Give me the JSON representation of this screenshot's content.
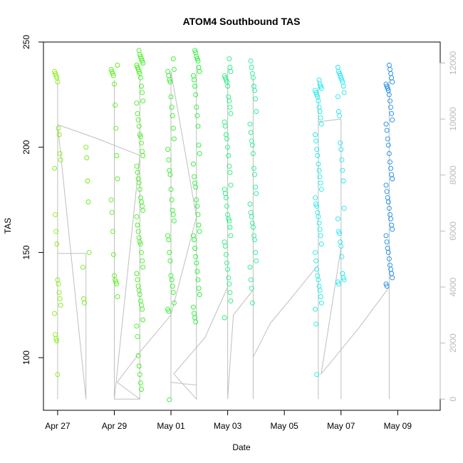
{
  "chart_data": {
    "type": "scatter",
    "title": "ATOM4 Southbound TAS",
    "xlabel": "Date",
    "ylabel": "TAS",
    "x_ticks": [
      "Apr 27",
      "Apr 29",
      "May 01",
      "May 03",
      "May 05",
      "May 07",
      "May 09"
    ],
    "x_tick_days": [
      0,
      2,
      4,
      6,
      8,
      10,
      12
    ],
    "xlim_days": [
      -0.5,
      13.5
    ],
    "ylim": [
      75,
      250
    ],
    "y_ticks": [
      100,
      150,
      200,
      250
    ],
    "y2lim": [
      -400,
      12750
    ],
    "y2_ticks": [
      0,
      2000,
      4000,
      6000,
      8000,
      10000,
      12000
    ],
    "grid": false,
    "legend": "none",
    "point_color_scale": "green-to-blue by date",
    "altitude_line_color": "#bfbfbf",
    "flights": [
      {
        "day": 0.0,
        "color": "#7ff00a",
        "tas": [
          236,
          235,
          234,
          233,
          231,
          209,
          206,
          197,
          194,
          190,
          168,
          160,
          154,
          137,
          135,
          131,
          128,
          125,
          121,
          111,
          109,
          108,
          92
        ]
      },
      {
        "day": 1.0,
        "color": "#6cf012",
        "tas": [
          200,
          195,
          184,
          174,
          150,
          143,
          128,
          126
        ]
      },
      {
        "day": 2.0,
        "color": "#55f018",
        "tas": [
          239,
          237,
          236,
          235,
          234,
          230,
          220,
          209,
          196,
          185,
          175,
          169,
          160,
          149,
          139,
          137,
          136,
          135,
          129
        ]
      },
      {
        "day": 2.9,
        "color": "#43f01e",
        "tas": [
          246,
          244,
          243,
          242,
          241,
          240,
          239,
          238,
          237,
          236,
          235,
          233,
          229,
          226,
          222,
          221,
          216,
          213,
          210,
          206,
          205,
          202,
          198,
          196,
          191,
          188,
          185,
          183,
          180,
          176,
          174,
          172,
          170,
          167,
          163,
          160,
          157,
          155,
          154,
          150,
          146,
          143,
          140,
          137,
          134,
          132,
          130,
          127,
          125,
          123,
          118,
          115,
          110,
          101,
          96,
          92,
          88,
          85
        ]
      },
      {
        "day": 4.0,
        "color": "#2cf026",
        "tas": [
          242,
          237,
          236,
          234,
          232,
          231,
          224,
          219,
          215,
          209,
          204,
          199,
          194,
          189,
          187,
          180,
          175,
          170,
          168,
          165,
          158,
          156,
          150,
          146,
          139,
          137,
          134,
          131,
          126,
          123,
          122,
          80
        ]
      },
      {
        "day": 4.9,
        "color": "#20f030",
        "tas": [
          246,
          245,
          243,
          242,
          241,
          238,
          236,
          234,
          232,
          229,
          225,
          219,
          215,
          210,
          201,
          197,
          192,
          186,
          183,
          181,
          175,
          172,
          168,
          163,
          160,
          158,
          156,
          152,
          148,
          145,
          141,
          137,
          133,
          130,
          124,
          121,
          119,
          117
        ]
      },
      {
        "day": 6.0,
        "color": "#20f078",
        "tas": [
          242,
          238,
          236,
          234,
          233,
          232,
          231,
          229,
          224,
          222,
          219,
          216,
          212,
          210,
          206,
          204,
          200,
          196,
          191,
          188,
          182,
          180,
          178,
          176,
          172,
          168,
          166,
          165,
          162,
          158,
          155,
          153,
          149,
          145,
          142,
          138,
          135,
          131,
          127,
          119
        ]
      },
      {
        "day": 6.9,
        "color": "#20f090",
        "tas": [
          241,
          238,
          235,
          233,
          229,
          227,
          223,
          217,
          211,
          207,
          203,
          201,
          197,
          190,
          187,
          181,
          178,
          173,
          169,
          167,
          164,
          162,
          158,
          156,
          150,
          146,
          143,
          137,
          133,
          126
        ]
      },
      {
        "day": 9.2,
        "color": "#18ecec",
        "tas": [
          232,
          230,
          229,
          228,
          227,
          226,
          225,
          224,
          222,
          219,
          217,
          214,
          211,
          206,
          203,
          199,
          196,
          192,
          189,
          186,
          183,
          180,
          176,
          173,
          172,
          169,
          167,
          164,
          161,
          158,
          154,
          150,
          146,
          142,
          139,
          137,
          134,
          132,
          129,
          126,
          123,
          116,
          92
        ]
      },
      {
        "day": 10.0,
        "color": "#20e6f0",
        "tas": [
          238,
          236,
          235,
          234,
          233,
          232,
          231,
          229,
          226,
          224,
          217,
          215,
          202,
          199,
          194,
          189,
          184,
          171,
          166,
          160,
          159,
          155,
          153,
          148,
          140,
          138,
          137,
          136,
          135
        ]
      },
      {
        "day": 11.7,
        "color": "#1a8ce8",
        "tas": [
          239,
          237,
          235,
          233,
          231,
          230,
          229,
          228,
          227,
          225,
          222,
          219,
          216,
          213,
          211,
          208,
          204,
          201,
          197,
          193,
          190,
          187,
          185,
          182,
          179,
          176,
          174,
          171,
          168,
          166,
          163,
          161,
          158,
          155,
          152,
          150,
          147,
          144,
          142,
          140,
          138,
          135,
          134
        ]
      }
    ],
    "altitude_trace": [
      [
        0.0,
        0
      ],
      [
        0.0,
        11500
      ],
      [
        0.0,
        5200
      ],
      [
        0.5,
        5200
      ],
      [
        1.0,
        5200
      ],
      [
        1.0,
        0
      ],
      [
        0.0,
        9800
      ],
      [
        1.4,
        9300
      ],
      [
        2.9,
        8700
      ],
      [
        2.0,
        0
      ],
      [
        2.0,
        11400
      ],
      [
        2.0,
        0
      ],
      [
        2.9,
        0
      ],
      [
        2.9,
        11600
      ],
      [
        2.9,
        0
      ],
      [
        2.1,
        600
      ],
      [
        3.0,
        1800
      ],
      [
        4.0,
        3000
      ],
      [
        4.9,
        6500
      ],
      [
        4.0,
        11700
      ],
      [
        4.0,
        0
      ],
      [
        4.0,
        600
      ],
      [
        4.9,
        500
      ],
      [
        4.9,
        11900
      ],
      [
        4.9,
        0
      ],
      [
        4.1,
        900
      ],
      [
        5.2,
        2200
      ],
      [
        6.0,
        4000
      ],
      [
        6.0,
        11800
      ],
      [
        6.0,
        0
      ],
      [
        6.2,
        3000
      ],
      [
        6.9,
        3900
      ],
      [
        6.9,
        0
      ],
      [
        6.9,
        11500
      ],
      [
        6.9,
        1500
      ],
      [
        7.5,
        2700
      ],
      [
        8.4,
        3800
      ],
      [
        9.2,
        4800
      ],
      [
        9.2,
        0
      ],
      [
        9.2,
        11400
      ],
      [
        9.2,
        9900
      ],
      [
        10.0,
        10000
      ],
      [
        10.0,
        0
      ],
      [
        10.0,
        9600
      ],
      [
        10.0,
        5500
      ],
      [
        10.0,
        5400
      ],
      [
        9.3,
        900
      ],
      [
        10.6,
        2500
      ],
      [
        11.7,
        4000
      ],
      [
        11.7,
        0
      ],
      [
        11.7,
        11500
      ],
      [
        11.7,
        3800
      ]
    ]
  }
}
